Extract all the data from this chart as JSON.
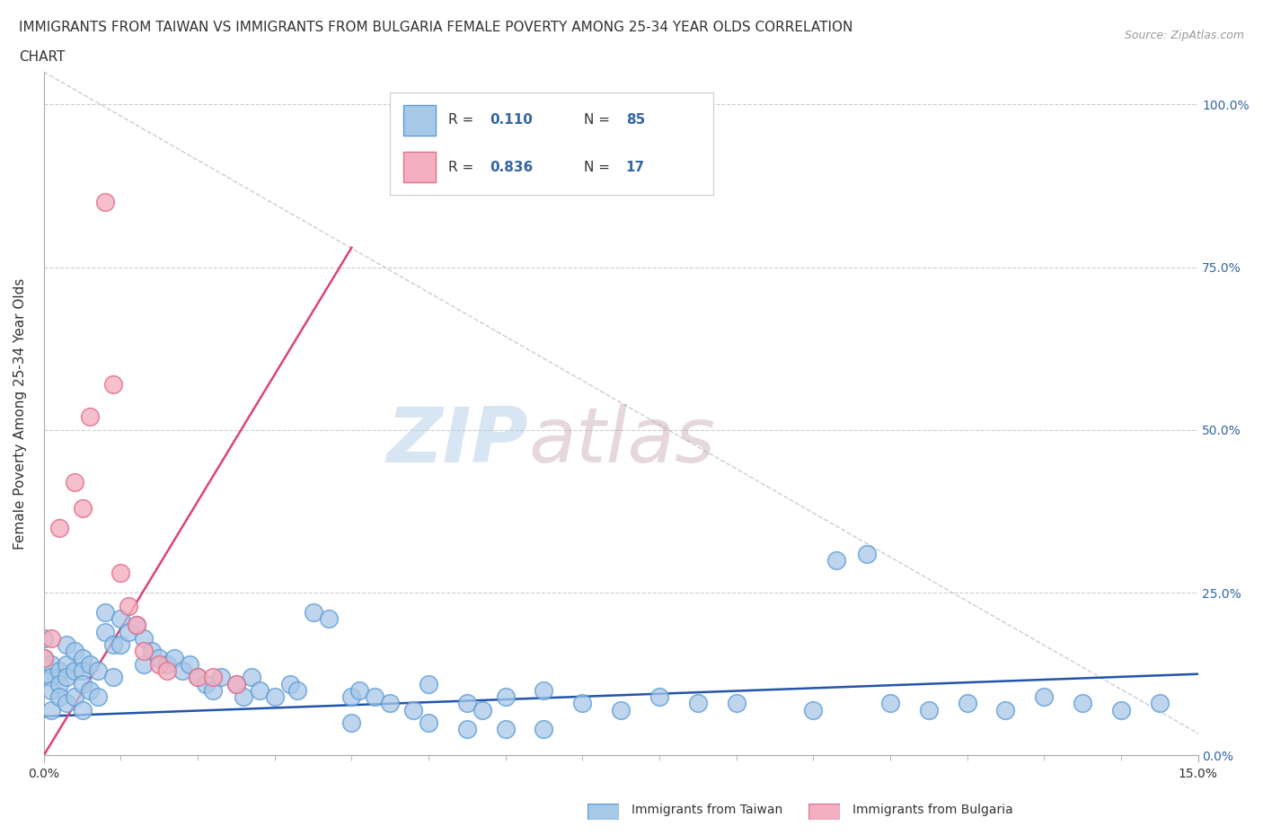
{
  "title_line1": "IMMIGRANTS FROM TAIWAN VS IMMIGRANTS FROM BULGARIA FEMALE POVERTY AMONG 25-34 YEAR OLDS CORRELATION",
  "title_line2": "CHART",
  "source_text": "Source: ZipAtlas.com",
  "ylabel": "Female Poverty Among 25-34 Year Olds",
  "xlim": [
    0.0,
    0.15
  ],
  "ylim": [
    0.0,
    1.05
  ],
  "ytick_values": [
    0.0,
    0.25,
    0.5,
    0.75,
    1.0
  ],
  "ytick_pct_labels": [
    "0.0%",
    "25.0%",
    "50.0%",
    "75.0%",
    "100.0%"
  ],
  "taiwan_color": "#a8c8e8",
  "taiwan_edge_color": "#5b9bd5",
  "bulgaria_color": "#f4b0c0",
  "bulgaria_edge_color": "#e07090",
  "trendline_taiwan_color": "#2255aa",
  "trendline_bulgaria_color": "#dd4477",
  "diagonal_color": "#c8c8c8",
  "R_taiwan": 0.11,
  "N_taiwan": 85,
  "R_bulgaria": 0.836,
  "N_bulgaria": 17,
  "watermark_zip": "ZIP",
  "watermark_atlas": "atlas",
  "legend_taiwan": "Immigrants from Taiwan",
  "legend_bulgaria": "Immigrants from Bulgaria",
  "taiwan_x": [
    0.0,
    0.0,
    0.0,
    0.001,
    0.001,
    0.001,
    0.001,
    0.002,
    0.002,
    0.002,
    0.003,
    0.003,
    0.003,
    0.003,
    0.004,
    0.004,
    0.004,
    0.005,
    0.005,
    0.005,
    0.005,
    0.006,
    0.006,
    0.007,
    0.007,
    0.008,
    0.008,
    0.009,
    0.009,
    0.01,
    0.01,
    0.011,
    0.012,
    0.013,
    0.013,
    0.014,
    0.015,
    0.016,
    0.017,
    0.018,
    0.019,
    0.02,
    0.021,
    0.022,
    0.023,
    0.025,
    0.026,
    0.027,
    0.028,
    0.03,
    0.032,
    0.033,
    0.035,
    0.037,
    0.04,
    0.041,
    0.043,
    0.045,
    0.048,
    0.05,
    0.055,
    0.057,
    0.06,
    0.065,
    0.07,
    0.075,
    0.08,
    0.085,
    0.09,
    0.1,
    0.103,
    0.107,
    0.11,
    0.115,
    0.12,
    0.125,
    0.13,
    0.135,
    0.14,
    0.145,
    0.04,
    0.05,
    0.055,
    0.06,
    0.065
  ],
  "taiwan_y": [
    0.18,
    0.15,
    0.12,
    0.14,
    0.12,
    0.1,
    0.07,
    0.13,
    0.11,
    0.09,
    0.17,
    0.14,
    0.12,
    0.08,
    0.16,
    0.13,
    0.09,
    0.15,
    0.13,
    0.11,
    0.07,
    0.14,
    0.1,
    0.13,
    0.09,
    0.22,
    0.19,
    0.17,
    0.12,
    0.21,
    0.17,
    0.19,
    0.2,
    0.18,
    0.14,
    0.16,
    0.15,
    0.14,
    0.15,
    0.13,
    0.14,
    0.12,
    0.11,
    0.1,
    0.12,
    0.11,
    0.09,
    0.12,
    0.1,
    0.09,
    0.11,
    0.1,
    0.22,
    0.21,
    0.09,
    0.1,
    0.09,
    0.08,
    0.07,
    0.11,
    0.08,
    0.07,
    0.09,
    0.1,
    0.08,
    0.07,
    0.09,
    0.08,
    0.08,
    0.07,
    0.3,
    0.31,
    0.08,
    0.07,
    0.08,
    0.07,
    0.09,
    0.08,
    0.07,
    0.08,
    0.05,
    0.05,
    0.04,
    0.04,
    0.04
  ],
  "bulgaria_x": [
    0.0,
    0.001,
    0.002,
    0.004,
    0.005,
    0.006,
    0.008,
    0.009,
    0.01,
    0.011,
    0.012,
    0.013,
    0.015,
    0.016,
    0.02,
    0.022,
    0.025
  ],
  "bulgaria_y": [
    0.15,
    0.18,
    0.35,
    0.42,
    0.38,
    0.52,
    0.85,
    0.57,
    0.28,
    0.23,
    0.2,
    0.16,
    0.14,
    0.13,
    0.12,
    0.12,
    0.11
  ],
  "taiwan_trendline_x": [
    0.0,
    0.15
  ],
  "taiwan_trendline_y": [
    0.06,
    0.125
  ],
  "bulgaria_trendline_x": [
    0.0,
    0.04
  ],
  "bulgaria_trendline_y": [
    0.0,
    0.78
  ]
}
